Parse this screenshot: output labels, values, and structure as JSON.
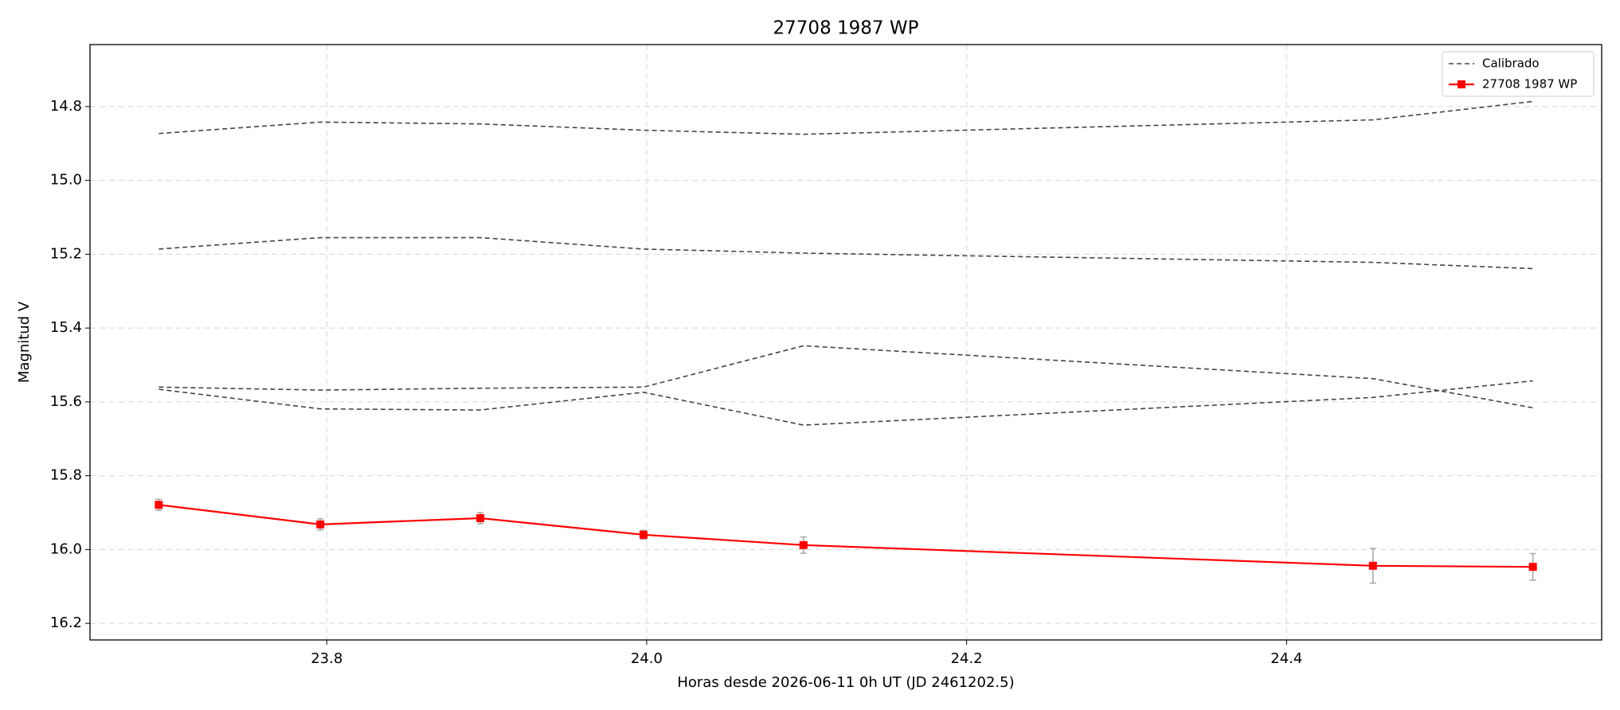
{
  "chart_data": {
    "type": "line",
    "title": "27708 1987 WP",
    "x_label": "Horas desde 2026-06-11 0h UT (JD 2461202.5)",
    "y_label": "Magnitud V",
    "x": [
      23.695,
      23.796,
      23.896,
      23.998,
      24.098,
      24.454,
      24.554
    ],
    "series": [
      {
        "name": "Calibrado",
        "color": "#444444",
        "style": "dashed",
        "lines": [
          [
            14.873,
            14.842,
            14.847,
            14.864,
            14.875,
            14.836,
            14.786
          ],
          [
            15.186,
            15.155,
            15.155,
            15.186,
            15.197,
            15.222,
            15.239
          ],
          [
            15.56,
            15.568,
            15.563,
            15.56,
            15.448,
            15.537,
            15.616
          ],
          [
            15.566,
            15.619,
            15.622,
            15.574,
            15.663,
            15.588,
            15.543
          ]
        ]
      },
      {
        "name": "27708 1987 WP",
        "color": "#ff0000",
        "style": "solid",
        "values": [
          15.879,
          15.932,
          15.915,
          15.96,
          15.988,
          16.044,
          16.047
        ],
        "errors": [
          0.015,
          0.015,
          0.015,
          0.012,
          0.022,
          0.047,
          0.036
        ],
        "error_color": "#aaaaaa"
      }
    ],
    "xlim": [
      23.652,
      24.597
    ],
    "ylim": [
      14.632,
      16.245
    ],
    "y_inverted": true,
    "xticks": [
      23.8,
      {
        "value": 24,
        "label": "24.0"
      },
      24.2,
      24.4
    ],
    "yticks": [
      14.8,
      {
        "value": 15,
        "label": "15.0"
      },
      15.2,
      15.4,
      15.6,
      15.8,
      {
        "value": 16,
        "label": "16.0"
      },
      16.2
    ],
    "grid": true,
    "legend": "upper right"
  }
}
